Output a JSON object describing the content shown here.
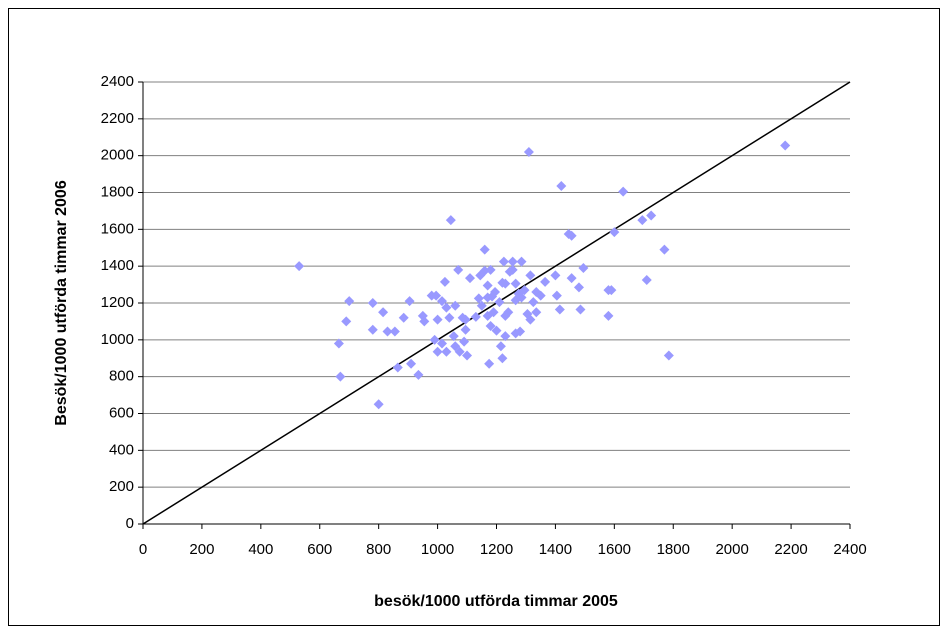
{
  "chart_data": {
    "type": "scatter",
    "x_label": "besök/1000 utförda timmar 2005",
    "y_label": "Besök/1000 utförda timmar 2006",
    "xlim": [
      0,
      2400
    ],
    "ylim": [
      0,
      2400
    ],
    "xticks": [
      0,
      200,
      400,
      600,
      800,
      1000,
      1200,
      1400,
      1600,
      1800,
      2000,
      2200,
      2400
    ],
    "yticks": [
      0,
      200,
      400,
      600,
      800,
      1000,
      1200,
      1400,
      1600,
      1800,
      2000,
      2200,
      2400
    ],
    "grid": true,
    "diagonal": true,
    "series": [
      {
        "color": "#9999ff",
        "x": [
          530,
          670,
          665,
          700,
          690,
          780,
          780,
          815,
          800,
          830,
          855,
          865,
          885,
          905,
          910,
          935,
          950,
          955,
          980,
          990,
          995,
          1000,
          1000,
          1015,
          1015,
          1030,
          1030,
          1025,
          1040,
          1045,
          1055,
          1060,
          1060,
          1075,
          1070,
          1085,
          1090,
          1095,
          1095,
          1100,
          1110,
          1130,
          1140,
          1150,
          1145,
          1160,
          1160,
          1170,
          1170,
          1170,
          1175,
          1180,
          1180,
          1185,
          1190,
          1200,
          1195,
          1210,
          1220,
          1215,
          1220,
          1225,
          1230,
          1230,
          1230,
          1240,
          1245,
          1255,
          1255,
          1265,
          1265,
          1265,
          1275,
          1280,
          1285,
          1285,
          1295,
          1305,
          1310,
          1315,
          1315,
          1325,
          1335,
          1335,
          1350,
          1365,
          1400,
          1405,
          1415,
          1420,
          1445,
          1455,
          1455,
          1480,
          1485,
          1495,
          1580,
          1590,
          1580,
          1600,
          1630,
          1695,
          1710,
          1725,
          1770,
          1785,
          2180
        ],
        "values": [
          1400,
          800,
          980,
          1210,
          1100,
          1200,
          1055,
          1150,
          650,
          1045,
          1045,
          850,
          1120,
          1210,
          870,
          810,
          1130,
          1100,
          1240,
          1000,
          1240,
          1110,
          935,
          980,
          1210,
          935,
          1175,
          1315,
          1120,
          1650,
          1020,
          1185,
          965,
          935,
          1380,
          1120,
          990,
          1055,
          1110,
          915,
          1335,
          1125,
          1225,
          1185,
          1350,
          1375,
          1490,
          1230,
          1130,
          1295,
          870,
          1075,
          1380,
          1235,
          1150,
          1050,
          1260,
          1205,
          1310,
          965,
          900,
          1425,
          1020,
          1130,
          1305,
          1150,
          1370,
          1380,
          1425,
          1215,
          1305,
          1035,
          1250,
          1045,
          1425,
          1230,
          1270,
          1140,
          2020,
          1350,
          1110,
          1205,
          1150,
          1260,
          1240,
          1315,
          1350,
          1240,
          1165,
          1835,
          1575,
          1565,
          1335,
          1285,
          1165,
          1390,
          1270,
          1270,
          1130,
          1585,
          1805,
          1650,
          1325,
          1675,
          1490,
          915,
          2055
        ]
      }
    ]
  }
}
